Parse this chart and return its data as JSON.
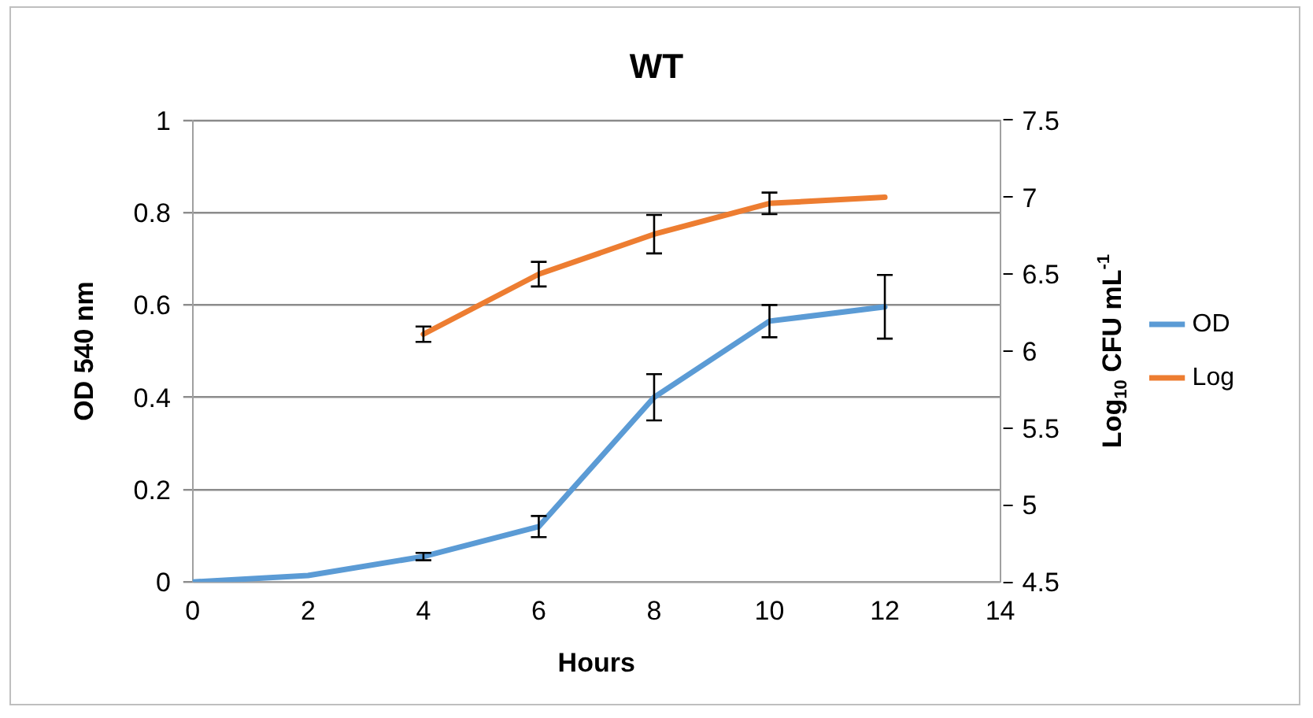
{
  "chart_data": {
    "type": "line",
    "title": "WT",
    "xlabel": "Hours",
    "ylabel": "OD 540 nm",
    "y2label": "Log$_{10}$ CFU mL$^{-1}$",
    "x": [
      0,
      2,
      4,
      6,
      8,
      10,
      12
    ],
    "series": [
      {
        "name": "OD",
        "color": "#5b9bd5",
        "values": [
          0,
          0.014,
          0.055,
          0.12,
          0.4,
          0.565,
          0.596
        ],
        "errors": [
          null,
          null,
          0.008,
          0.023,
          0.05,
          0.035,
          0.069
        ]
      },
      {
        "name": "Log",
        "color": "#ed7d31",
        "axis": "y2",
        "values": [
          null,
          null,
          6.11,
          6.5,
          6.76,
          6.96,
          7.0
        ],
        "errors": [
          null,
          null,
          0.05,
          0.08,
          0.125,
          0.07,
          null
        ]
      }
    ],
    "xlim": [
      0,
      14
    ],
    "xticks": [
      0,
      2,
      4,
      6,
      8,
      10,
      12,
      14
    ],
    "ylim": [
      0,
      1
    ],
    "yticks": [
      0,
      0.2,
      0.4,
      0.6,
      0.8,
      1
    ],
    "y2lim": [
      4.5,
      7.5
    ],
    "y2ticks": [
      4.5,
      5,
      5.5,
      6,
      6.5,
      7,
      7.5
    ],
    "grid": "y",
    "legend": "right",
    "line_style": "solid"
  }
}
